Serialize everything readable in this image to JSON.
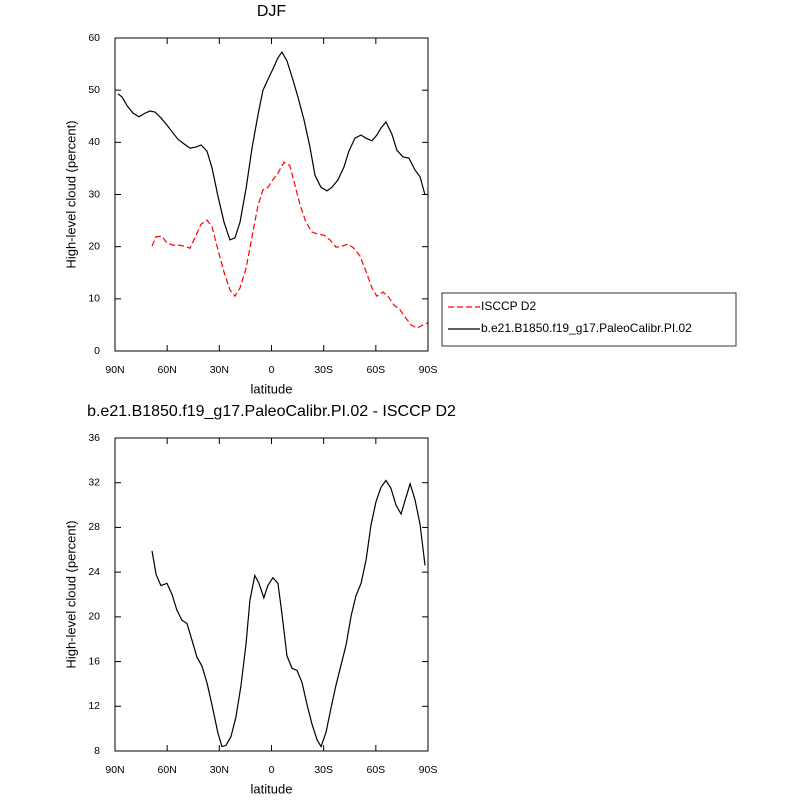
{
  "chart_data": [
    {
      "type": "line",
      "title": "DJF",
      "x_label": "latitude",
      "y_label": "High-level cloud (percent)",
      "xlim": [
        90,
        -90
      ],
      "ylim": [
        0,
        60
      ],
      "xticks": [
        {
          "value": 90,
          "label": "90N"
        },
        {
          "value": 60,
          "label": "60N"
        },
        {
          "value": 30,
          "label": "30N"
        },
        0,
        {
          "value": -30,
          "label": "30S"
        },
        {
          "value": -60,
          "label": "60S"
        },
        {
          "value": -90,
          "label": "90S"
        }
      ],
      "yticks": [
        0,
        10,
        20,
        30,
        40,
        50,
        60
      ],
      "legend": "outside-right",
      "series": [
        {
          "name": "ISCCP D2",
          "color": "#ff0000",
          "dashed": true,
          "x": [
            68.7,
            66.4,
            63,
            60.1,
            56.7,
            53.2,
            50.3,
            46.9,
            43.4,
            40.5,
            37.1,
            34.2,
            30.8,
            27.3,
            23.9,
            21,
            18.1,
            14.6,
            11.2,
            7.7,
            4.9,
            2,
            -0.3,
            -3.7,
            -7.2,
            -10.6,
            -13.5,
            -16.4,
            -19.8,
            -23.3,
            -26.7,
            -30.2,
            -33.6,
            -37.1,
            -40.5,
            -44,
            -47.4,
            -50.9,
            -54.3,
            -57.8,
            -60.6,
            -64.1,
            -67,
            -70.4,
            -73.9,
            -77.3,
            -80.2,
            -83.7,
            -87.1,
            -90
          ],
          "values": [
            20.1,
            21.9,
            22.0,
            20.7,
            20.3,
            20.3,
            20.1,
            19.7,
            22.2,
            24.3,
            25.1,
            23.8,
            19.4,
            15.1,
            11.7,
            10.5,
            12.1,
            15.9,
            21.9,
            28.0,
            30.9,
            31.4,
            32.6,
            34.1,
            36.2,
            35.5,
            31.8,
            28.0,
            24.7,
            22.8,
            22.4,
            22.2,
            21.3,
            19.9,
            20.1,
            20.5,
            19.7,
            18.2,
            15.3,
            12.1,
            10.5,
            11.3,
            10.5,
            8.8,
            7.9,
            6.3,
            5.0,
            4.4,
            5.0,
            5.4
          ]
        },
        {
          "name": "b.e21.B1850.f19_g17.PaleoCalibr.PI.02",
          "color": "#000000",
          "dashed": false,
          "x": [
            88.3,
            86,
            83,
            79.6,
            76.2,
            72.7,
            69.9,
            67,
            63.6,
            60.1,
            56.7,
            53.8,
            50.3,
            46.9,
            43.4,
            40.5,
            37.1,
            34.2,
            30.8,
            27.3,
            23.9,
            21,
            18.1,
            14.6,
            11.2,
            7.7,
            4.9,
            2,
            -0.3,
            -3.7,
            -6,
            -8.9,
            -12.4,
            -15.2,
            -18.7,
            -22.1,
            -25,
            -28.4,
            -31.9,
            -34.8,
            -38.2,
            -41.7,
            -44.5,
            -48,
            -51.4,
            -54.3,
            -57.8,
            -60.6,
            -62.9,
            -65.8,
            -69.2,
            -72.1,
            -75.6,
            -79,
            -82.5,
            -85.4,
            -88.3
          ],
          "values": [
            49.3,
            48.7,
            47.0,
            45.6,
            44.9,
            45.6,
            46.0,
            45.8,
            44.7,
            43.3,
            41.8,
            40.6,
            39.7,
            38.9,
            39.1,
            39.5,
            38.3,
            35.1,
            29.7,
            24.7,
            21.3,
            21.7,
            24.7,
            31.2,
            38.9,
            45.4,
            50.0,
            52.1,
            53.7,
            56.2,
            57.3,
            55.6,
            51.9,
            48.7,
            44.3,
            39.1,
            33.7,
            31.4,
            30.7,
            31.4,
            32.8,
            35.3,
            38.3,
            40.8,
            41.4,
            40.8,
            40.3,
            41.4,
            42.7,
            43.9,
            41.6,
            38.5,
            37.2,
            37.0,
            34.7,
            33.4,
            29.9
          ]
        }
      ]
    },
    {
      "type": "line",
      "title": "b.e21.B1850.f19_g17.PaleoCalibr.PI.02 - ISCCP D2",
      "x_label": "latitude",
      "y_label": "High-level cloud (percent)",
      "xlim": [
        90,
        -90
      ],
      "ylim": [
        8,
        36
      ],
      "xticks": [
        {
          "value": 90,
          "label": "90N"
        },
        {
          "value": 60,
          "label": "60N"
        },
        {
          "value": 30,
          "label": "30N"
        },
        0,
        {
          "value": -30,
          "label": "30S"
        },
        {
          "value": -60,
          "label": "60S"
        },
        {
          "value": -90,
          "label": "90S"
        }
      ],
      "yticks": [
        8,
        12,
        16,
        20,
        24,
        28,
        32,
        36
      ],
      "series": [
        {
          "color": "#000000",
          "dashed": false,
          "x": [
            68.7,
            66.4,
            63.6,
            60.1,
            57.2,
            54.4,
            51.5,
            48.6,
            45.7,
            42.9,
            40,
            37.1,
            34.2,
            30.8,
            28.5,
            26.2,
            23.3,
            20.5,
            17.6,
            14.7,
            12.4,
            9.6,
            7.2,
            4.4,
            2.1,
            -0.8,
            -3.7,
            -6,
            -8.9,
            -11.8,
            -14.7,
            -17.6,
            -20.5,
            -23.3,
            -26.2,
            -28.5,
            -31.4,
            -34.3,
            -37.1,
            -40,
            -42.9,
            -45.8,
            -48.6,
            -51.5,
            -54.4,
            -57.2,
            -60.1,
            -63,
            -65.8,
            -68.7,
            -71.6,
            -74.5,
            -76.8,
            -79.7,
            -82.5,
            -85.4,
            -88.3
          ],
          "values": [
            25.9,
            23.8,
            22.8,
            23.0,
            22.0,
            20.6,
            19.7,
            19.4,
            17.9,
            16.4,
            15.6,
            14.1,
            12.1,
            9.6,
            8.4,
            8.5,
            9.3,
            11.0,
            13.8,
            17.5,
            21.5,
            23.7,
            23.0,
            21.7,
            22.8,
            23.5,
            23.0,
            20.3,
            16.5,
            15.4,
            15.2,
            14.1,
            12.1,
            10.4,
            9.0,
            8.4,
            9.7,
            11.9,
            13.9,
            15.7,
            17.5,
            20.1,
            21.9,
            23.0,
            25.1,
            28.2,
            30.3,
            31.6,
            32.2,
            31.5,
            30.0,
            29.2,
            30.4,
            31.9,
            30.5,
            28.3,
            24.6
          ]
        }
      ]
    }
  ]
}
